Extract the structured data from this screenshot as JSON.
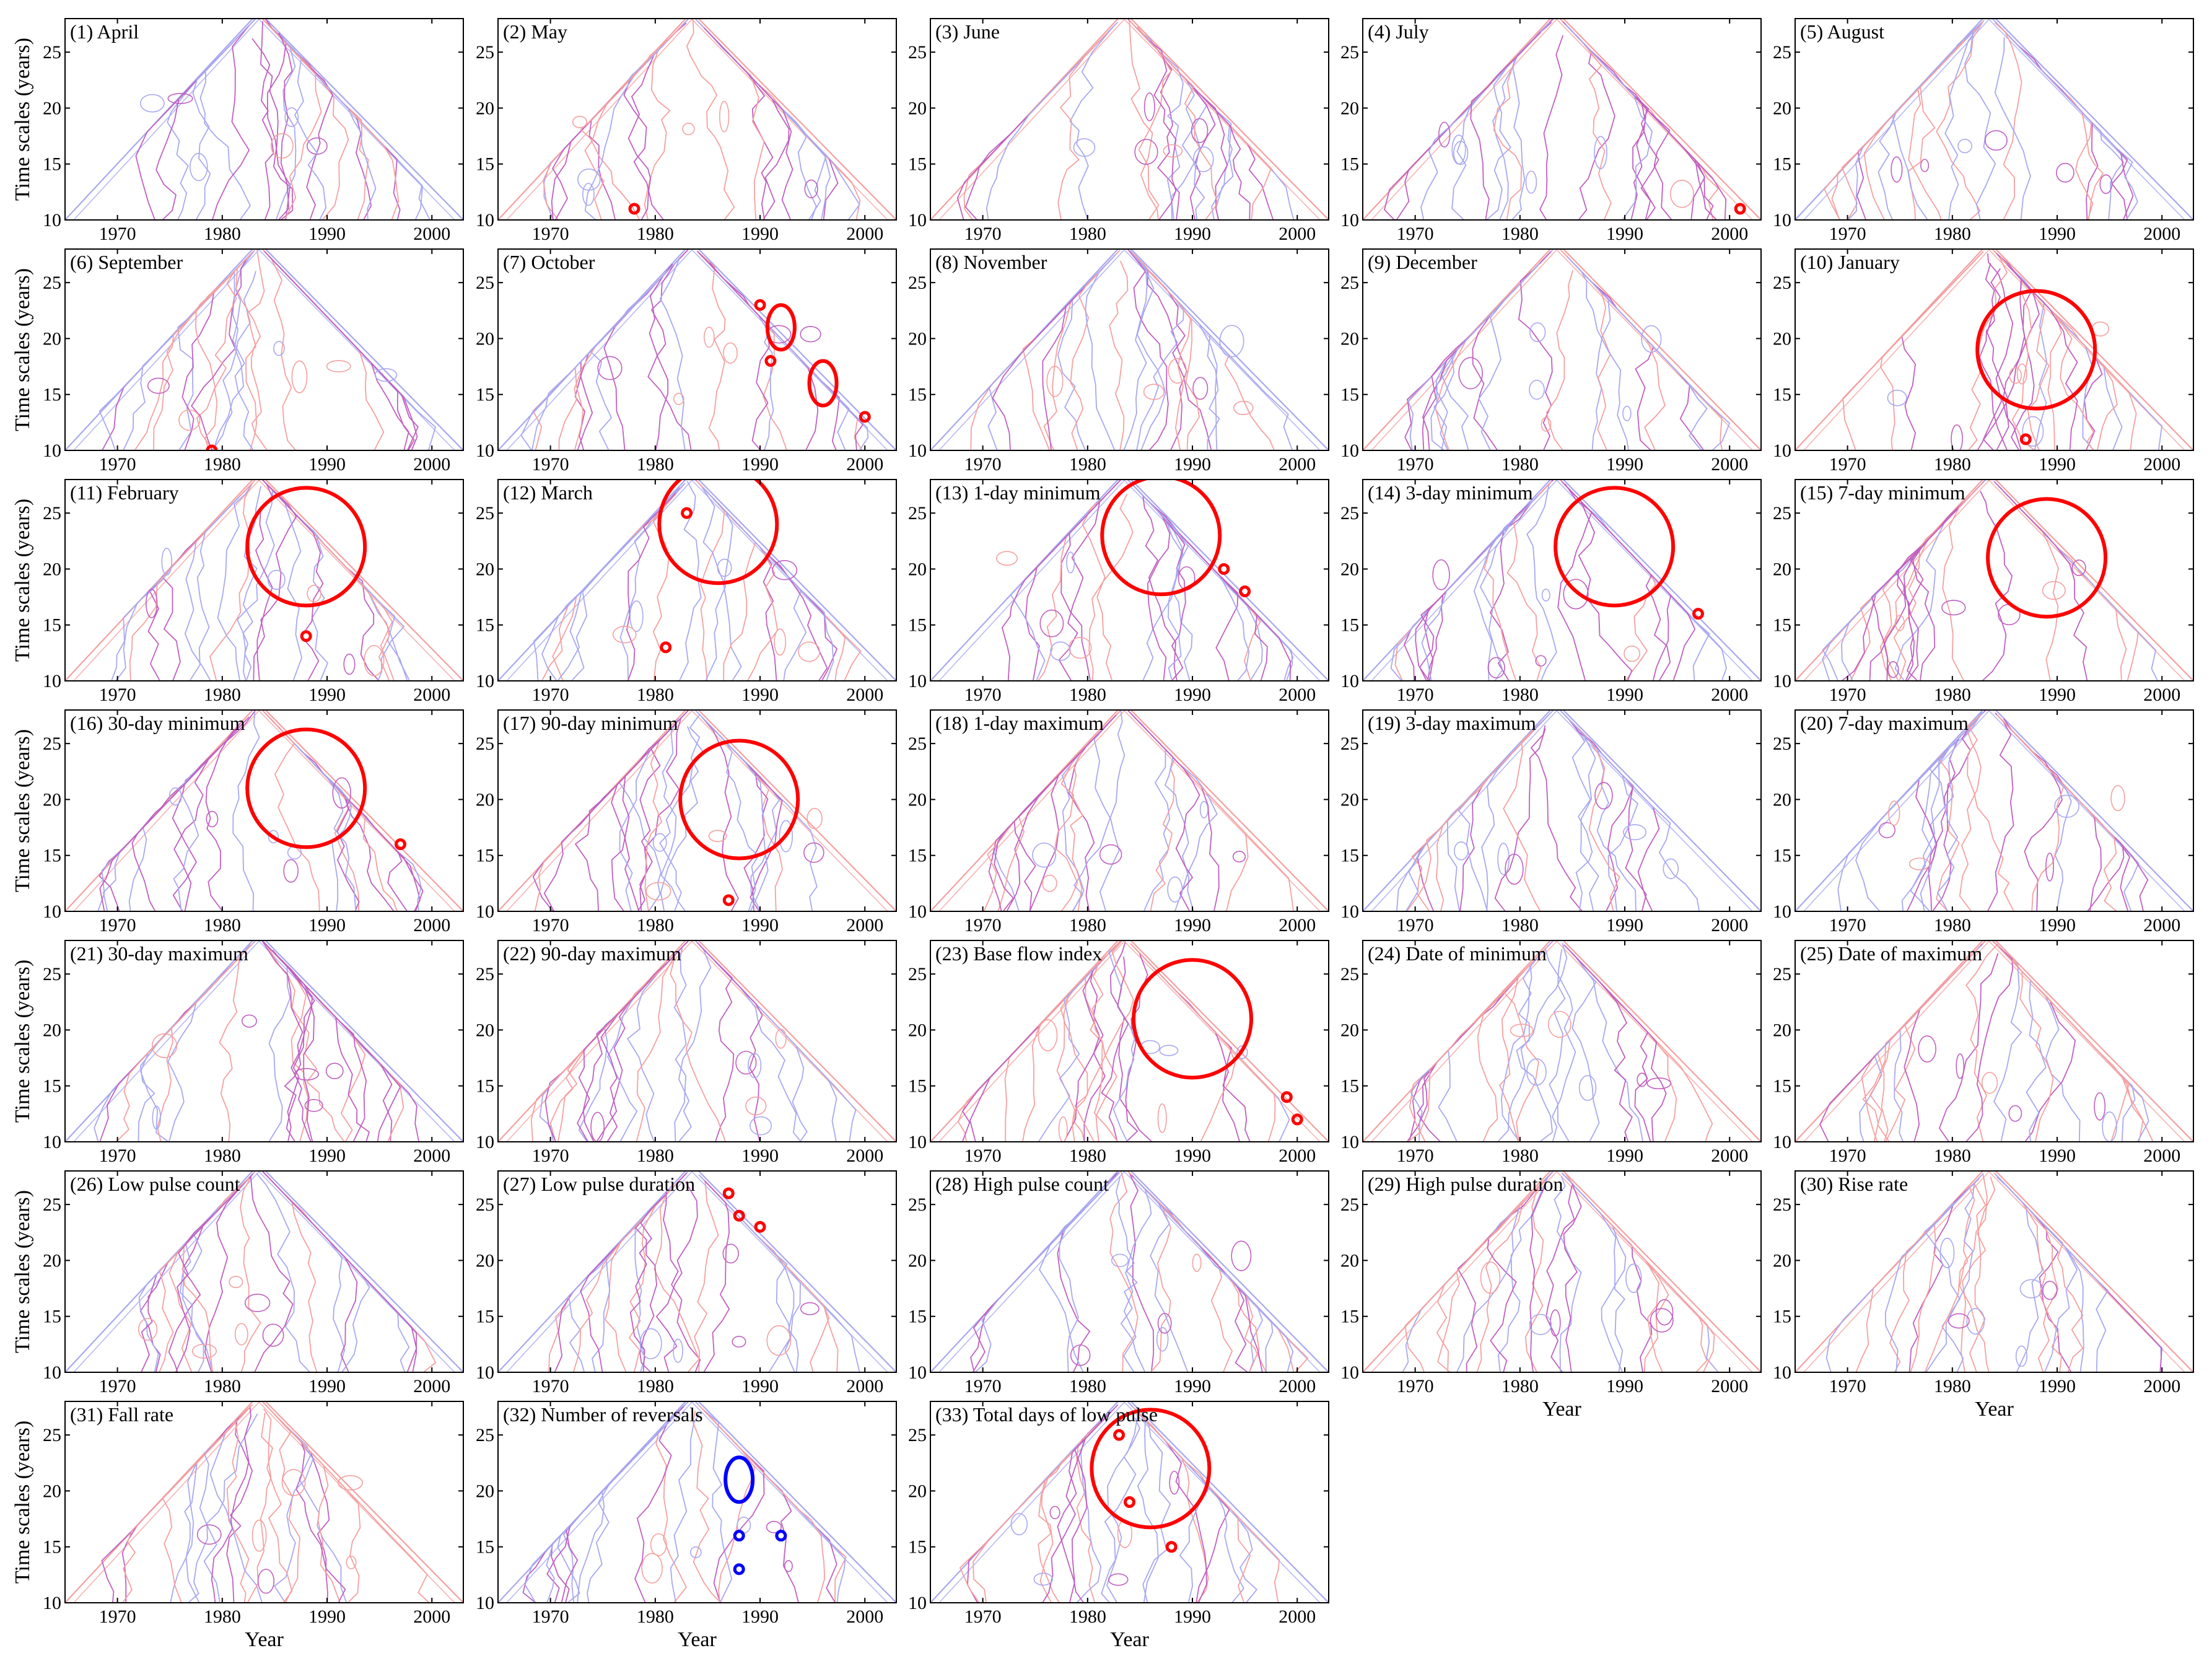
{
  "figure": {
    "xlabel": "Year",
    "ylabel": "Time scales (years)"
  },
  "colors": {
    "positive": "#ff0000",
    "negative": "#0000ff",
    "positive_light": "#f5a0a0",
    "negative_light": "#a8a8f0",
    "mixed_light": "#c060c0",
    "frame": "#000000"
  },
  "chart_data": [
    {
      "type": "contour",
      "title": "(1) April",
      "xlim": [
        1965,
        2003
      ],
      "ylim": [
        10,
        28
      ],
      "xticks": [
        1970,
        1980,
        1990,
        2000
      ],
      "yticks": [
        10,
        15,
        20,
        25
      ],
      "significant": []
    },
    {
      "type": "contour",
      "title": "(2) May",
      "xlim": [
        1965,
        2003
      ],
      "ylim": [
        10,
        28
      ],
      "xticks": [
        1970,
        1980,
        1990,
        2000
      ],
      "yticks": [
        10,
        15,
        20,
        25
      ],
      "significant": [
        {
          "sign": "positive",
          "center": [
            1978,
            11
          ],
          "size": "small"
        }
      ]
    },
    {
      "type": "contour",
      "title": "(3) June",
      "xlim": [
        1965,
        2003
      ],
      "ylim": [
        10,
        28
      ],
      "xticks": [
        1970,
        1980,
        1990,
        2000
      ],
      "yticks": [
        10,
        15,
        20,
        25
      ],
      "significant": []
    },
    {
      "type": "contour",
      "title": "(4) July",
      "xlim": [
        1965,
        2003
      ],
      "ylim": [
        10,
        28
      ],
      "xticks": [
        1970,
        1980,
        1990,
        2000
      ],
      "yticks": [
        10,
        15,
        20,
        25
      ],
      "significant": [
        {
          "sign": "positive",
          "center": [
            2001,
            11
          ],
          "size": "small"
        }
      ]
    },
    {
      "type": "contour",
      "title": "(5) August",
      "xlim": [
        1965,
        2003
      ],
      "ylim": [
        10,
        28
      ],
      "xticks": [
        1970,
        1980,
        1990,
        2000
      ],
      "yticks": [
        10,
        15,
        20,
        25
      ],
      "significant": []
    },
    {
      "type": "contour",
      "title": "(6) September",
      "xlim": [
        1965,
        2003
      ],
      "ylim": [
        10,
        28
      ],
      "xticks": [
        1970,
        1980,
        1990,
        2000
      ],
      "yticks": [
        10,
        15,
        20,
        25
      ],
      "significant": [
        {
          "sign": "positive",
          "center": [
            1979,
            10
          ],
          "size": "small"
        }
      ]
    },
    {
      "type": "contour",
      "title": "(7) October",
      "xlim": [
        1965,
        2003
      ],
      "ylim": [
        10,
        28
      ],
      "xticks": [
        1970,
        1980,
        1990,
        2000
      ],
      "yticks": [
        10,
        15,
        20,
        25
      ],
      "significant": [
        {
          "sign": "positive",
          "center": [
            1990,
            23
          ],
          "size": "small"
        },
        {
          "sign": "positive",
          "center": [
            1992,
            21
          ],
          "size": "region"
        },
        {
          "sign": "positive",
          "center": [
            1991,
            18
          ],
          "size": "small"
        },
        {
          "sign": "positive",
          "center": [
            1996,
            16
          ],
          "size": "region"
        },
        {
          "sign": "positive",
          "center": [
            2000,
            13
          ],
          "size": "small"
        }
      ]
    },
    {
      "type": "contour",
      "title": "(8) November",
      "xlim": [
        1965,
        2003
      ],
      "ylim": [
        10,
        28
      ],
      "xticks": [
        1970,
        1980,
        1990,
        2000
      ],
      "yticks": [
        10,
        15,
        20,
        25
      ],
      "significant": []
    },
    {
      "type": "contour",
      "title": "(9) December",
      "xlim": [
        1965,
        2003
      ],
      "ylim": [
        10,
        28
      ],
      "xticks": [
        1970,
        1980,
        1990,
        2000
      ],
      "yticks": [
        10,
        15,
        20,
        25
      ],
      "significant": []
    },
    {
      "type": "contour",
      "title": "(10) January",
      "xlim": [
        1965,
        2003
      ],
      "ylim": [
        10,
        28
      ],
      "xticks": [
        1970,
        1980,
        1990,
        2000
      ],
      "yticks": [
        10,
        15,
        20,
        25
      ],
      "significant": [
        {
          "sign": "positive",
          "center": [
            1988,
            19
          ],
          "size": "large"
        },
        {
          "sign": "positive",
          "center": [
            1987,
            11
          ],
          "size": "small"
        }
      ]
    },
    {
      "type": "contour",
      "title": "(11) February",
      "xlim": [
        1965,
        2003
      ],
      "ylim": [
        10,
        28
      ],
      "xticks": [
        1970,
        1980,
        1990,
        2000
      ],
      "yticks": [
        10,
        15,
        20,
        25
      ],
      "significant": [
        {
          "sign": "positive",
          "center": [
            1988,
            22
          ],
          "size": "large"
        },
        {
          "sign": "positive",
          "center": [
            1988,
            14
          ],
          "size": "small"
        }
      ]
    },
    {
      "type": "contour",
      "title": "(12) March",
      "xlim": [
        1965,
        2003
      ],
      "ylim": [
        10,
        28
      ],
      "xticks": [
        1970,
        1980,
        1990,
        2000
      ],
      "yticks": [
        10,
        15,
        20,
        25
      ],
      "significant": [
        {
          "sign": "positive",
          "center": [
            1986,
            24
          ],
          "size": "large"
        },
        {
          "sign": "positive",
          "center": [
            1983,
            25
          ],
          "size": "small"
        },
        {
          "sign": "positive",
          "center": [
            1981,
            13
          ],
          "size": "small"
        }
      ]
    },
    {
      "type": "contour",
      "title": "(13) 1-day minimum",
      "xlim": [
        1965,
        2003
      ],
      "ylim": [
        10,
        28
      ],
      "xticks": [
        1970,
        1980,
        1990,
        2000
      ],
      "yticks": [
        10,
        15,
        20,
        25
      ],
      "significant": [
        {
          "sign": "positive",
          "center": [
            1987,
            23
          ],
          "size": "large"
        },
        {
          "sign": "positive",
          "center": [
            1993,
            20
          ],
          "size": "small"
        },
        {
          "sign": "positive",
          "center": [
            1995,
            18
          ],
          "size": "small"
        }
      ]
    },
    {
      "type": "contour",
      "title": "(14) 3-day minimum",
      "xlim": [
        1965,
        2003
      ],
      "ylim": [
        10,
        28
      ],
      "xticks": [
        1970,
        1980,
        1990,
        2000
      ],
      "yticks": [
        10,
        15,
        20,
        25
      ],
      "significant": [
        {
          "sign": "positive",
          "center": [
            1989,
            22
          ],
          "size": "large"
        },
        {
          "sign": "positive",
          "center": [
            1997,
            16
          ],
          "size": "small"
        }
      ]
    },
    {
      "type": "contour",
      "title": "(15) 7-day minimum",
      "xlim": [
        1965,
        2003
      ],
      "ylim": [
        10,
        28
      ],
      "xticks": [
        1970,
        1980,
        1990,
        2000
      ],
      "yticks": [
        10,
        15,
        20,
        25
      ],
      "significant": [
        {
          "sign": "positive",
          "center": [
            1989,
            21
          ],
          "size": "large"
        }
      ]
    },
    {
      "type": "contour",
      "title": "(16) 30-day minimum",
      "xlim": [
        1965,
        2003
      ],
      "ylim": [
        10,
        28
      ],
      "xticks": [
        1970,
        1980,
        1990,
        2000
      ],
      "yticks": [
        10,
        15,
        20,
        25
      ],
      "significant": [
        {
          "sign": "positive",
          "center": [
            1988,
            21
          ],
          "size": "large"
        },
        {
          "sign": "positive",
          "center": [
            1997,
            16
          ],
          "size": "small"
        }
      ]
    },
    {
      "type": "contour",
      "title": "(17) 90-day minimum",
      "xlim": [
        1965,
        2003
      ],
      "ylim": [
        10,
        28
      ],
      "xticks": [
        1970,
        1980,
        1990,
        2000
      ],
      "yticks": [
        10,
        15,
        20,
        25
      ],
      "significant": [
        {
          "sign": "positive",
          "center": [
            1988,
            20
          ],
          "size": "large"
        },
        {
          "sign": "positive",
          "center": [
            1987,
            11
          ],
          "size": "small"
        }
      ]
    },
    {
      "type": "contour",
      "title": "(18) 1-day maximum",
      "xlim": [
        1965,
        2003
      ],
      "ylim": [
        10,
        28
      ],
      "xticks": [
        1970,
        1980,
        1990,
        2000
      ],
      "yticks": [
        10,
        15,
        20,
        25
      ],
      "significant": []
    },
    {
      "type": "contour",
      "title": "(19) 3-day maximum",
      "xlim": [
        1965,
        2003
      ],
      "ylim": [
        10,
        28
      ],
      "xticks": [
        1970,
        1980,
        1990,
        2000
      ],
      "yticks": [
        10,
        15,
        20,
        25
      ],
      "significant": []
    },
    {
      "type": "contour",
      "title": "(20) 7-day maximum",
      "xlim": [
        1965,
        2003
      ],
      "ylim": [
        10,
        28
      ],
      "xticks": [
        1970,
        1980,
        1990,
        2000
      ],
      "yticks": [
        10,
        15,
        20,
        25
      ],
      "significant": []
    },
    {
      "type": "contour",
      "title": "(21) 30-day maximum",
      "xlim": [
        1965,
        2003
      ],
      "ylim": [
        10,
        28
      ],
      "xticks": [
        1970,
        1980,
        1990,
        2000
      ],
      "yticks": [
        10,
        15,
        20,
        25
      ],
      "significant": []
    },
    {
      "type": "contour",
      "title": "(22) 90-day maximum",
      "xlim": [
        1965,
        2003
      ],
      "ylim": [
        10,
        28
      ],
      "xticks": [
        1970,
        1980,
        1990,
        2000
      ],
      "yticks": [
        10,
        15,
        20,
        25
      ],
      "significant": []
    },
    {
      "type": "contour",
      "title": "(23) Base flow index",
      "xlim": [
        1965,
        2003
      ],
      "ylim": [
        10,
        28
      ],
      "xticks": [
        1970,
        1980,
        1990,
        2000
      ],
      "yticks": [
        10,
        15,
        20,
        25
      ],
      "significant": [
        {
          "sign": "positive",
          "center": [
            1990,
            21
          ],
          "size": "large"
        },
        {
          "sign": "positive",
          "center": [
            1999,
            14
          ],
          "size": "small"
        },
        {
          "sign": "positive",
          "center": [
            2000,
            12
          ],
          "size": "small"
        }
      ]
    },
    {
      "type": "contour",
      "title": "(24) Date of minimum",
      "xlim": [
        1965,
        2003
      ],
      "ylim": [
        10,
        28
      ],
      "xticks": [
        1970,
        1980,
        1990,
        2000
      ],
      "yticks": [
        10,
        15,
        20,
        25
      ],
      "significant": []
    },
    {
      "type": "contour",
      "title": "(25) Date of maximum",
      "xlim": [
        1965,
        2003
      ],
      "ylim": [
        10,
        28
      ],
      "xticks": [
        1970,
        1980,
        1990,
        2000
      ],
      "yticks": [
        10,
        15,
        20,
        25
      ],
      "significant": []
    },
    {
      "type": "contour",
      "title": "(26) Low pulse count",
      "xlim": [
        1965,
        2003
      ],
      "ylim": [
        10,
        28
      ],
      "xticks": [
        1970,
        1980,
        1990,
        2000
      ],
      "yticks": [
        10,
        15,
        20,
        25
      ],
      "significant": []
    },
    {
      "type": "contour",
      "title": "(27) Low pulse duration",
      "xlim": [
        1965,
        2003
      ],
      "ylim": [
        10,
        28
      ],
      "xticks": [
        1970,
        1980,
        1990,
        2000
      ],
      "yticks": [
        10,
        15,
        20,
        25
      ],
      "significant": [
        {
          "sign": "positive",
          "center": [
            1987,
            26
          ],
          "size": "small"
        },
        {
          "sign": "positive",
          "center": [
            1988,
            24
          ],
          "size": "small"
        },
        {
          "sign": "positive",
          "center": [
            1990,
            23
          ],
          "size": "small"
        }
      ]
    },
    {
      "type": "contour",
      "title": "(28) High pulse count",
      "xlim": [
        1965,
        2003
      ],
      "ylim": [
        10,
        28
      ],
      "xticks": [
        1970,
        1980,
        1990,
        2000
      ],
      "yticks": [
        10,
        15,
        20,
        25
      ],
      "significant": []
    },
    {
      "type": "contour",
      "title": "(29) High pulse duration",
      "xlim": [
        1965,
        2003
      ],
      "ylim": [
        10,
        28
      ],
      "xticks": [
        1970,
        1980,
        1990,
        2000
      ],
      "yticks": [
        10,
        15,
        20,
        25
      ],
      "significant": []
    },
    {
      "type": "contour",
      "title": "(30) Rise rate",
      "xlim": [
        1965,
        2003
      ],
      "ylim": [
        10,
        28
      ],
      "xticks": [
        1970,
        1980,
        1990,
        2000
      ],
      "yticks": [
        10,
        15,
        20,
        25
      ],
      "significant": []
    },
    {
      "type": "contour",
      "title": "(31) Fall rate",
      "xlim": [
        1965,
        2003
      ],
      "ylim": [
        10,
        28
      ],
      "xticks": [
        1970,
        1980,
        1990,
        2000
      ],
      "yticks": [
        10,
        15,
        20,
        25
      ],
      "significant": []
    },
    {
      "type": "contour",
      "title": "(32) Number of reversals",
      "xlim": [
        1965,
        2003
      ],
      "ylim": [
        10,
        28
      ],
      "xticks": [
        1970,
        1980,
        1990,
        2000
      ],
      "yticks": [
        10,
        15,
        20,
        25
      ],
      "significant": [
        {
          "sign": "negative",
          "center": [
            1988,
            21
          ],
          "size": "region"
        },
        {
          "sign": "negative",
          "center": [
            1988,
            16
          ],
          "size": "small"
        },
        {
          "sign": "negative",
          "center": [
            1988,
            13
          ],
          "size": "small"
        },
        {
          "sign": "negative",
          "center": [
            1992,
            16
          ],
          "size": "small"
        }
      ]
    },
    {
      "type": "contour",
      "title": "(33) Total days of low pulse",
      "xlim": [
        1965,
        2003
      ],
      "ylim": [
        10,
        28
      ],
      "xticks": [
        1970,
        1980,
        1990,
        2000
      ],
      "yticks": [
        10,
        15,
        20,
        25
      ],
      "significant": [
        {
          "sign": "positive",
          "center": [
            1986,
            22
          ],
          "size": "large"
        },
        {
          "sign": "positive",
          "center": [
            1983,
            25
          ],
          "size": "small"
        },
        {
          "sign": "positive",
          "center": [
            1984,
            19
          ],
          "size": "small"
        },
        {
          "sign": "positive",
          "center": [
            1988,
            15
          ],
          "size": "small"
        }
      ]
    }
  ]
}
